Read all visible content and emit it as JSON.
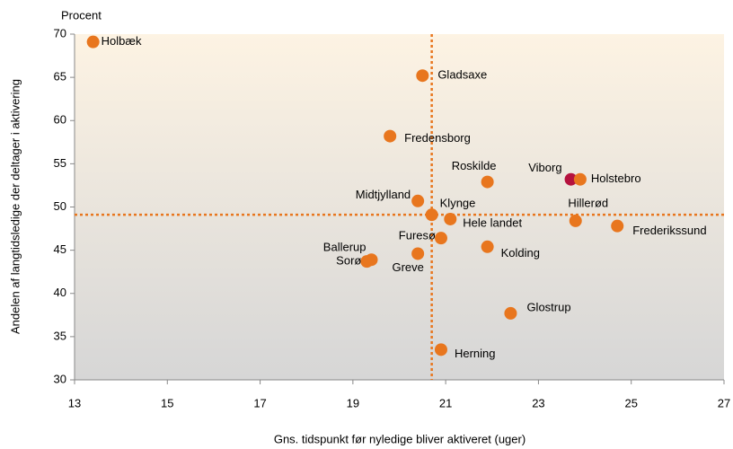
{
  "chart_data": {
    "type": "scatter",
    "y_unit_label": "Procent",
    "ylabel": "Andelen af langtidsledige der deltager i aktivering",
    "xlabel": "Gns. tidspunkt før nyledige bliver aktiveret (uger)",
    "labels": [
      "Holbæk",
      "Gladsaxe",
      "Fredensborg",
      "Roskilde",
      "Viborg",
      "Holstebro",
      "Midtjylland",
      "Klynge",
      "Hele landet",
      "Hillerød",
      "Frederikssund",
      "Furesø",
      "Kolding",
      "Ballerup",
      "Sorø",
      "Greve",
      "Glostrup",
      "Herning"
    ],
    "x": [
      13.4,
      20.5,
      19.8,
      21.9,
      23.7,
      23.9,
      20.4,
      20.7,
      21.1,
      23.8,
      24.7,
      20.9,
      21.9,
      19.4,
      19.3,
      20.4,
      22.4,
      20.9
    ],
    "y": [
      69.1,
      65.2,
      58.2,
      52.9,
      53.2,
      53.2,
      50.7,
      49.1,
      48.6,
      48.4,
      47.8,
      46.4,
      45.4,
      43.9,
      43.7,
      44.6,
      37.7,
      33.5
    ],
    "colors": [
      "#e8761e",
      "#e8761e",
      "#e8761e",
      "#e8761e",
      "#b5123e",
      "#e8761e",
      "#e8761e",
      "#e8761e",
      "#e8761e",
      "#e8761e",
      "#e8761e",
      "#e8761e",
      "#e8761e",
      "#e8761e",
      "#e8761e",
      "#e8761e",
      "#e8761e",
      "#e8761e"
    ],
    "reference_x": 20.7,
    "reference_y": 49.1,
    "reference_color": "#e8761e",
    "xlim": [
      13,
      27
    ],
    "xticks": [
      13,
      15,
      17,
      19,
      21,
      23,
      25,
      27
    ],
    "ylim": [
      30,
      70
    ],
    "yticks": [
      30,
      35,
      40,
      45,
      50,
      55,
      60,
      65,
      70
    ]
  }
}
